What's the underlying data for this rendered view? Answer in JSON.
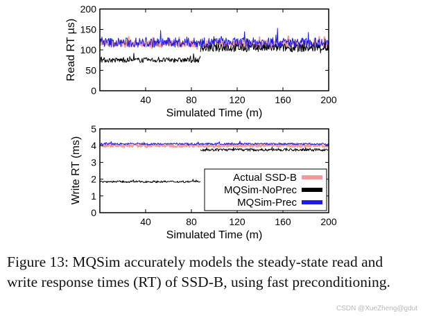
{
  "chart_data": [
    {
      "type": "line",
      "panel": "top",
      "xlabel": "Simulated Time (m)",
      "ylabel": "Read RT µs)",
      "xlim": [
        0,
        200
      ],
      "ylim": [
        0,
        200
      ],
      "xticks": [
        40,
        80,
        120,
        160,
        200
      ],
      "yticks": [
        0,
        50,
        100,
        150,
        200
      ],
      "series": [
        {
          "name": "Actual SSD-B",
          "color": "#f29a9a",
          "segments": [
            {
              "x": [
                0,
                200
              ],
              "y": 115,
              "noise": 8
            }
          ]
        },
        {
          "name": "MQSim-NoPrec",
          "color": "#000000",
          "segments": [
            {
              "x": [
                0,
                88
              ],
              "y": 75,
              "noise": 6
            },
            {
              "x": [
                88,
                200
              ],
              "y": 105,
              "noise": 10
            }
          ]
        },
        {
          "name": "MQSim-Prec",
          "color": "#1c1ce6",
          "segments": [
            {
              "x": [
                0,
                200
              ],
              "y": 118,
              "noise": 12
            }
          ]
        }
      ]
    },
    {
      "type": "line",
      "panel": "bottom",
      "xlabel": "Simulated Time (m)",
      "ylabel": "Write RT (ms)",
      "xlim": [
        0,
        200
      ],
      "ylim": [
        0,
        5
      ],
      "xticks": [
        40,
        80,
        120,
        160,
        200
      ],
      "yticks": [
        0,
        1,
        2,
        3,
        4,
        5
      ],
      "legend_position": "bottom-right",
      "series": [
        {
          "name": "Actual SSD-B",
          "color": "#f29a9a",
          "segments": [
            {
              "x": [
                0,
                200
              ],
              "y": 4.0,
              "noise": 0.08
            }
          ]
        },
        {
          "name": "MQSim-NoPrec",
          "color": "#000000",
          "segments": [
            {
              "x": [
                0,
                88
              ],
              "y": 1.85,
              "noise": 0.06
            },
            {
              "x": [
                88,
                200
              ],
              "y": 3.75,
              "noise": 0.08
            }
          ]
        },
        {
          "name": "MQSim-Prec",
          "color": "#1c1ce6",
          "segments": [
            {
              "x": [
                0,
                200
              ],
              "y": 4.1,
              "noise": 0.06
            }
          ]
        }
      ]
    }
  ],
  "caption": "Figure 13: MQSim accurately models the steady-state read and write response times (RT) of SSD-B, using fast preconditioning.",
  "watermark": "CSDN @XueZheng@gdut"
}
